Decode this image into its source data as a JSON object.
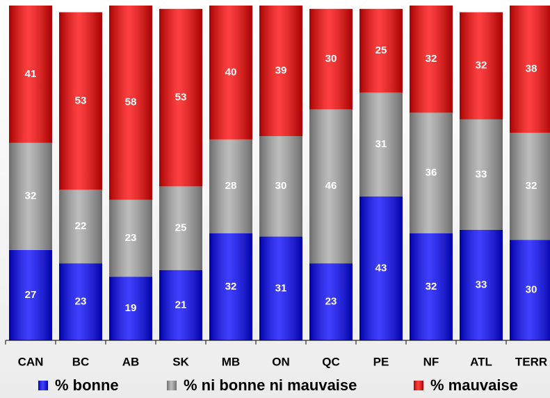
{
  "chart_data": {
    "type": "stacked_bar",
    "categories": [
      "CAN",
      "BC",
      "AB",
      "SK",
      "MB",
      "ON",
      "QC",
      "PE",
      "NF",
      "ATL",
      "TERR"
    ],
    "series": [
      {
        "name": "% bonne",
        "color": "#0000ff",
        "values": [
          27,
          23,
          19,
          21,
          32,
          31,
          23,
          43,
          32,
          33,
          30
        ]
      },
      {
        "name": "% ni bonne ni mauvaise",
        "color": "#a6a6a6",
        "values": [
          32,
          22,
          23,
          25,
          28,
          30,
          46,
          31,
          36,
          33,
          32
        ]
      },
      {
        "name": "% mauvaise",
        "color": "#ff0000",
        "values": [
          41,
          53,
          58,
          53,
          40,
          39,
          30,
          25,
          32,
          32,
          38
        ]
      }
    ],
    "ylim": [
      0,
      100
    ],
    "legend": "bottom"
  }
}
